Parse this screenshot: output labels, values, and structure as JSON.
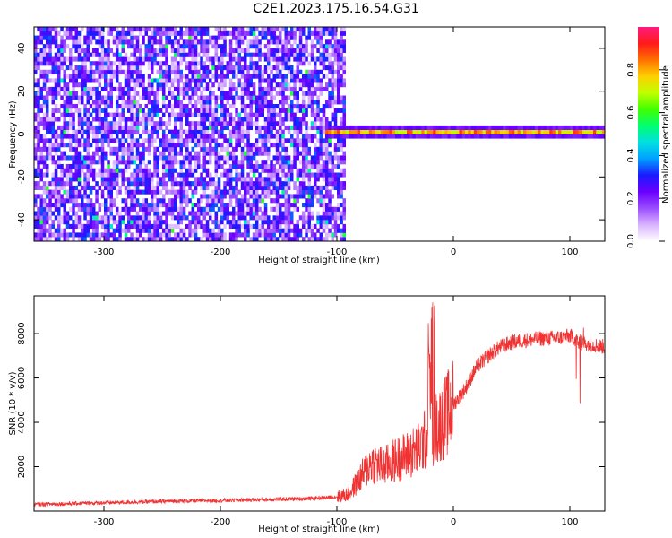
{
  "figure_title": "C2E1.2023.175.16.54.G31",
  "chart_data": [
    {
      "type": "heatmap",
      "title": "",
      "xlabel": "Height of straight line (km)",
      "ylabel": "Frequency (Hz)",
      "xlim": [
        -360,
        130
      ],
      "ylim": [
        -50,
        50
      ],
      "xticks": [
        -300,
        -200,
        -100,
        0,
        100
      ],
      "xtick_labels": [
        "-300",
        "-200",
        "-100",
        "0",
        "100"
      ],
      "yticks": [
        -40,
        -20,
        0,
        20,
        40
      ],
      "ytick_labels": [
        "-40",
        "-20",
        "0",
        "20",
        "40"
      ],
      "colorbar": {
        "label": "Normalized spectral amplitude",
        "range": [
          0,
          1
        ],
        "ticks": [
          0.0,
          0.2,
          0.4,
          0.6,
          0.8
        ],
        "tick_labels": [
          "0.0",
          "0.2",
          "0.4",
          "0.6",
          "0.8"
        ],
        "colormap": [
          "#ffffff",
          "#d9b3ff",
          "#9a4dff",
          "#6a00ff",
          "#1a1aff",
          "#00a0ff",
          "#00e0e0",
          "#00ff70",
          "#40ff00",
          "#c0ff00",
          "#ffd000",
          "#ff7000",
          "#ff1a1a",
          "#ff1a80"
        ]
      },
      "regions": [
        {
          "x_range": [
            -360,
            -95
          ],
          "y_range": [
            -50,
            50
          ],
          "description_amplitude": [
            0.05,
            0.35
          ]
        },
        {
          "x_range": [
            -110,
            130
          ],
          "y_center": 0,
          "y_halfwidth": 2.5,
          "amplitude_peak": 0.9
        }
      ]
    },
    {
      "type": "line",
      "title": "",
      "xlabel": "Height of straight line (km)",
      "ylabel": "SNR (10 * v/v)",
      "xlim": [
        -360,
        130
      ],
      "ylim": [
        0,
        9700
      ],
      "xticks": [
        -300,
        -200,
        -100,
        0,
        100
      ],
      "xtick_labels": [
        "-300",
        "-200",
        "-100",
        "0",
        "100"
      ],
      "yticks": [
        2000,
        4000,
        6000,
        8000
      ],
      "ytick_labels": [
        "2000",
        "4000",
        "6000",
        "8000"
      ],
      "color": "#f03232",
      "series": [
        {
          "x": [
            -360,
            -320,
            -280,
            -240,
            -200,
            -160,
            -130,
            -110,
            -100,
            -90,
            -80,
            -70,
            -60,
            -50,
            -40,
            -30,
            -20,
            -10,
            0,
            10,
            20,
            30,
            40,
            50,
            60,
            70,
            80,
            90,
            100,
            110,
            120,
            130
          ],
          "values": [
            300,
            350,
            400,
            450,
            480,
            520,
            560,
            600,
            650,
            750,
            1500,
            2200,
            2000,
            2300,
            2500,
            2800,
            3500,
            4000,
            4800,
            5500,
            6500,
            7000,
            7400,
            7600,
            7700,
            7750,
            7800,
            7800,
            7900,
            7600,
            7500,
            7400
          ]
        }
      ]
    }
  ]
}
